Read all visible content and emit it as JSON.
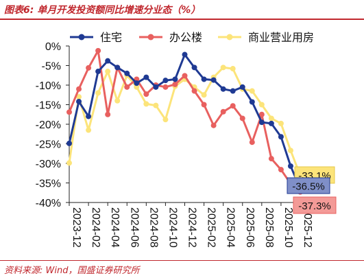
{
  "figure": {
    "title": "图表6:  单月开发投资额同比增速分业态（%）",
    "source": "资料来源:  Wind，国盛证券研究所",
    "accent_color": "#c0272d"
  },
  "chart_data": {
    "type": "line",
    "title": "",
    "xlabel": "",
    "ylabel": "",
    "ylim": [
      -40,
      0
    ],
    "yticks": [
      0,
      -5,
      -10,
      -15,
      -20,
      -25,
      -30,
      -35,
      -40
    ],
    "ytick_labels": [
      "0%",
      "-5%",
      "-10%",
      "-15%",
      "-20%",
      "-25%",
      "-30%",
      "-35%",
      "-40%"
    ],
    "x": [
      "2023-12",
      "2024-01",
      "2024-02",
      "2024-03",
      "2024-04",
      "2024-05",
      "2024-06",
      "2024-07",
      "2024-08",
      "2024-09",
      "2024-10",
      "2024-11",
      "2024-12",
      "2025-01",
      "2025-02",
      "2025-03",
      "2025-04",
      "2025-05",
      "2025-06",
      "2025-07",
      "2025-08",
      "2025-09",
      "2025-10",
      "2025-11",
      "2025-12"
    ],
    "xtick_labels": [
      "2023-12",
      "2024-02",
      "2024-04",
      "2024-06",
      "2024-08",
      "2024-10",
      "2024-12",
      "2025-02",
      "2025-04",
      "2025-06",
      "2025-08",
      "2025-10",
      "2025-12"
    ],
    "legend_position": "top",
    "grid": false,
    "series": [
      {
        "name": "住宅",
        "color": "#1f3a93",
        "values": [
          -24.9,
          -14.2,
          -18.0,
          -6.5,
          -3.8,
          -5.5,
          -7.0,
          -9.5,
          -8.0,
          -10.5,
          -8.8,
          -8.5,
          -2.2,
          -5.5,
          -8.5,
          -8.7,
          -11.0,
          -11.5,
          -10.5,
          -14.3,
          -19.5,
          -19.8,
          -23.2,
          -30.7,
          -36.5
        ]
      },
      {
        "name": "办公楼",
        "color": "#e8605f",
        "values": [
          -16.9,
          -11.0,
          -5.6,
          -1.2,
          -17.5,
          -5.5,
          -10.5,
          -8.5,
          -12.3,
          -10.0,
          -10.5,
          -9.8,
          -7.6,
          -11.5,
          -15.0,
          -20.3,
          -16.8,
          -15.3,
          -18.5,
          -24.6,
          -17.5,
          -28.8,
          -31.6,
          -35.2,
          -37.3
        ]
      },
      {
        "name": "商业营业用房",
        "color": "#fce47a",
        "values": [
          -29.9,
          -13.0,
          -21.5,
          -12.0,
          -6.5,
          -14.0,
          -7.5,
          -10.5,
          -14.8,
          -15.2,
          -18.8,
          -10.3,
          -8.5,
          -10.5,
          -12.5,
          -8.0,
          -5.5,
          -5.8,
          -11.0,
          -11.5,
          -15.0,
          -18.5,
          -19.8,
          -26.7,
          -33.1
        ]
      }
    ],
    "end_labels": [
      {
        "series": "商业营业用房",
        "text": "-33.1%"
      },
      {
        "series": "住宅",
        "text": "-36.5%"
      },
      {
        "series": "办公楼",
        "text": "-37.3%"
      }
    ]
  }
}
